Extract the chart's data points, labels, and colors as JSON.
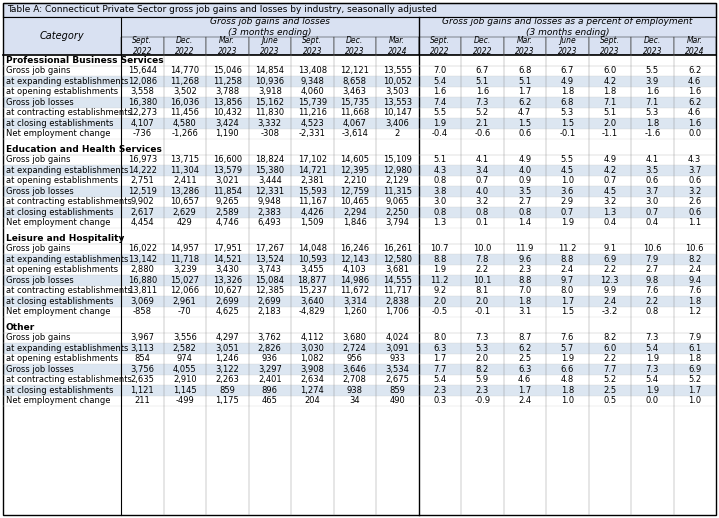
{
  "title": "Table A: Connecticut Private Sector gross job gains and losses by industry, seasonally adjusted",
  "dates": [
    "Sept.\n2022",
    "Dec.\n2022",
    "Mar.\n2023",
    "June\n2023",
    "Sept.\n2023",
    "Dec.\n2023",
    "Mar.\n2024"
  ],
  "sections": [
    {
      "header": "Professional Business Services",
      "rows": [
        [
          "Gross job gains",
          "15,644",
          "14,770",
          "15,046",
          "14,854",
          "13,408",
          "12,121",
          "13,555",
          "7.0",
          "6.7",
          "6.8",
          "6.7",
          "6.0",
          "5.5",
          "6.2"
        ],
        [
          "at expanding establishments",
          "12,086",
          "11,268",
          "11,258",
          "10,936",
          "9,348",
          "8,658",
          "10,052",
          "5.4",
          "5.1",
          "5.1",
          "4.9",
          "4.2",
          "3.9",
          "4.6"
        ],
        [
          "at opening establishments",
          "3,558",
          "3,502",
          "3,788",
          "3,918",
          "4,060",
          "3,463",
          "3,503",
          "1.6",
          "1.6",
          "1.7",
          "1.8",
          "1.8",
          "1.6",
          "1.6"
        ],
        [
          "Gross job losses",
          "16,380",
          "16,036",
          "13,856",
          "15,162",
          "15,739",
          "15,735",
          "13,553",
          "7.4",
          "7.3",
          "6.2",
          "6.8",
          "7.1",
          "7.1",
          "6.2"
        ],
        [
          "at contracting establishments",
          "12,273",
          "11,456",
          "10,432",
          "11,830",
          "11,216",
          "11,668",
          "10,147",
          "5.5",
          "5.2",
          "4.7",
          "5.3",
          "5.1",
          "5.3",
          "4.6"
        ],
        [
          "at closing establishments",
          "4,107",
          "4,580",
          "3,424",
          "3,332",
          "4,523",
          "4,067",
          "3,406",
          "1.9",
          "2.1",
          "1.5",
          "1.5",
          "2.0",
          "1.8",
          "1.6"
        ],
        [
          "Net employment change",
          "-736",
          "-1,266",
          "1,190",
          "-308",
          "-2,331",
          "-3,614",
          "2",
          "-0.4",
          "-0.6",
          "0.6",
          "-0.1",
          "-1.1",
          "-1.6",
          "0.0"
        ]
      ]
    },
    {
      "header": "Education and Health Services",
      "rows": [
        [
          "Gross job gains",
          "16,973",
          "13,715",
          "16,600",
          "18,824",
          "17,102",
          "14,605",
          "15,109",
          "5.1",
          "4.1",
          "4.9",
          "5.5",
          "4.9",
          "4.1",
          "4.3"
        ],
        [
          "at expanding establishments",
          "14,222",
          "11,304",
          "13,579",
          "15,380",
          "14,721",
          "12,395",
          "12,980",
          "4.3",
          "3.4",
          "4.0",
          "4.5",
          "4.2",
          "3.5",
          "3.7"
        ],
        [
          "at opening establishments",
          "2,751",
          "2,411",
          "3,021",
          "3,444",
          "2,381",
          "2,210",
          "2,129",
          "0.8",
          "0.7",
          "0.9",
          "1.0",
          "0.7",
          "0.6",
          "0.6"
        ],
        [
          "Gross job losses",
          "12,519",
          "13,286",
          "11,854",
          "12,331",
          "15,593",
          "12,759",
          "11,315",
          "3.8",
          "4.0",
          "3.5",
          "3.6",
          "4.5",
          "3.7",
          "3.2"
        ],
        [
          "at contracting establishments",
          "9,902",
          "10,657",
          "9,265",
          "9,948",
          "11,167",
          "10,465",
          "9,065",
          "3.0",
          "3.2",
          "2.7",
          "2.9",
          "3.2",
          "3.0",
          "2.6"
        ],
        [
          "at closing establishments",
          "2,617",
          "2,629",
          "2,589",
          "2,383",
          "4,426",
          "2,294",
          "2,250",
          "0.8",
          "0.8",
          "0.8",
          "0.7",
          "1.3",
          "0.7",
          "0.6"
        ],
        [
          "Net employment change",
          "4,454",
          "429",
          "4,746",
          "6,493",
          "1,509",
          "1,846",
          "3,794",
          "1.3",
          "0.1",
          "1.4",
          "1.9",
          "0.4",
          "0.4",
          "1.1"
        ]
      ]
    },
    {
      "header": "Leisure and Hospitality",
      "rows": [
        [
          "Gross job gains",
          "16,022",
          "14,957",
          "17,951",
          "17,267",
          "14,048",
          "16,246",
          "16,261",
          "10.7",
          "10.0",
          "11.9",
          "11.2",
          "9.1",
          "10.6",
          "10.6"
        ],
        [
          "at expanding establishments",
          "13,142",
          "11,718",
          "14,521",
          "13,524",
          "10,593",
          "12,143",
          "12,580",
          "8.8",
          "7.8",
          "9.6",
          "8.8",
          "6.9",
          "7.9",
          "8.2"
        ],
        [
          "at opening establishments",
          "2,880",
          "3,239",
          "3,430",
          "3,743",
          "3,455",
          "4,103",
          "3,681",
          "1.9",
          "2.2",
          "2.3",
          "2.4",
          "2.2",
          "2.7",
          "2.4"
        ],
        [
          "Gross job losses",
          "16,880",
          "15,027",
          "13,326",
          "15,084",
          "18,877",
          "14,986",
          "14,555",
          "11.2",
          "10.1",
          "8.8",
          "9.7",
          "12.3",
          "9.8",
          "9.4"
        ],
        [
          "at contracting establishments",
          "13,811",
          "12,066",
          "10,627",
          "12,385",
          "15,237",
          "11,672",
          "11,717",
          "9.2",
          "8.1",
          "7.0",
          "8.0",
          "9.9",
          "7.6",
          "7.6"
        ],
        [
          "at closing establishments",
          "3,069",
          "2,961",
          "2,699",
          "2,699",
          "3,640",
          "3,314",
          "2,838",
          "2.0",
          "2.0",
          "1.8",
          "1.7",
          "2.4",
          "2.2",
          "1.8"
        ],
        [
          "Net employment change",
          "-858",
          "-70",
          "4,625",
          "2,183",
          "-4,829",
          "1,260",
          "1,706",
          "-0.5",
          "-0.1",
          "3.1",
          "1.5",
          "-3.2",
          "0.8",
          "1.2"
        ]
      ]
    },
    {
      "header": "Other",
      "rows": [
        [
          "Gross job gains",
          "3,967",
          "3,556",
          "4,297",
          "3,762",
          "4,112",
          "3,680",
          "4,024",
          "8.0",
          "7.3",
          "8.7",
          "7.6",
          "8.2",
          "7.3",
          "7.9"
        ],
        [
          "at expanding establishments",
          "3,113",
          "2,582",
          "3,051",
          "2,826",
          "3,030",
          "2,724",
          "3,091",
          "6.3",
          "5.3",
          "6.2",
          "5.7",
          "6.0",
          "5.4",
          "6.1"
        ],
        [
          "at opening establishments",
          "854",
          "974",
          "1,246",
          "936",
          "1,082",
          "956",
          "933",
          "1.7",
          "2.0",
          "2.5",
          "1.9",
          "2.2",
          "1.9",
          "1.8"
        ],
        [
          "Gross job losses",
          "3,756",
          "4,055",
          "3,122",
          "3,297",
          "3,908",
          "3,646",
          "3,534",
          "7.7",
          "8.2",
          "6.3",
          "6.6",
          "7.7",
          "7.3",
          "6.9"
        ],
        [
          "at contracting establishments",
          "2,635",
          "2,910",
          "2,263",
          "2,401",
          "2,634",
          "2,708",
          "2,675",
          "5.4",
          "5.9",
          "4.6",
          "4.8",
          "5.2",
          "5.4",
          "5.2"
        ],
        [
          "at closing establishments",
          "1,121",
          "1,145",
          "859",
          "896",
          "1,274",
          "938",
          "859",
          "2.3",
          "2.3",
          "1.7",
          "1.8",
          "2.5",
          "1.9",
          "1.7"
        ],
        [
          "Net employment change",
          "211",
          "-499",
          "1,175",
          "465",
          "204",
          "34",
          "490",
          "0.3",
          "-0.9",
          "2.4",
          "1.0",
          "0.5",
          "0.0",
          "1.0"
        ]
      ]
    }
  ],
  "row_bg_light": "#dce6f1",
  "row_bg_white": "#ffffff",
  "title_bg": "#d9e1f2",
  "header_bg": "#d9e1f2"
}
